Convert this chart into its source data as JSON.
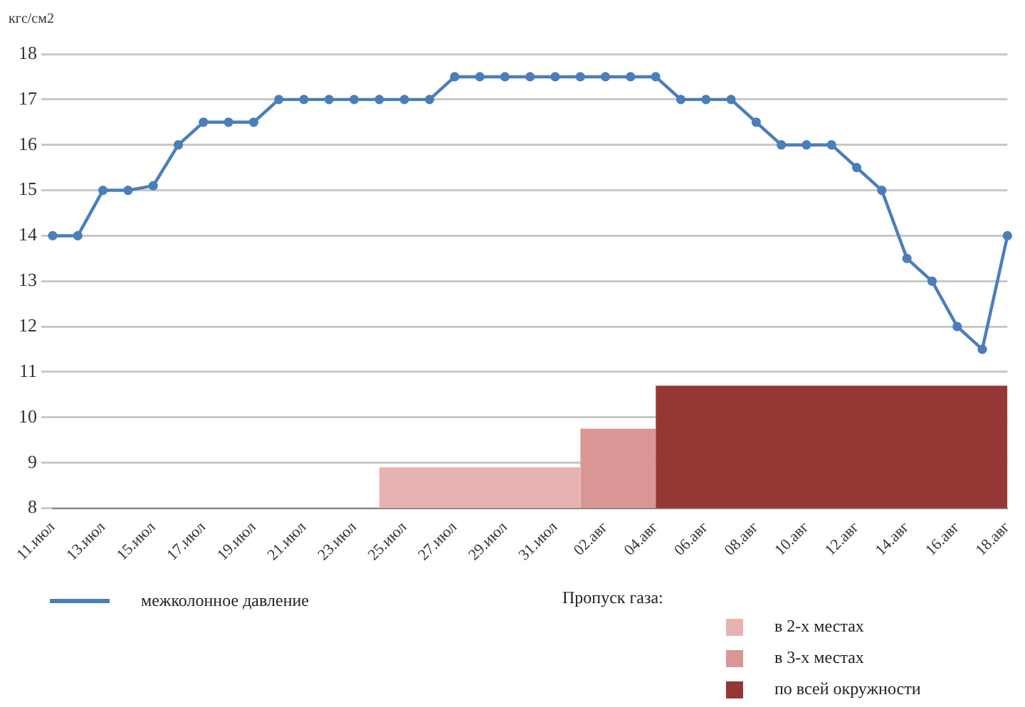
{
  "chart_data": {
    "type": "line",
    "ylabel": "кгс/см2",
    "legend_title": "Пропуск газа:",
    "categories": [
      "11.июл",
      null,
      "13.июл",
      null,
      "15.июл",
      null,
      "17.июл",
      null,
      "19.июл",
      null,
      "21.июл",
      null,
      "23.июл",
      null,
      "25.июл",
      null,
      "27.июл",
      null,
      "29.июл",
      null,
      "31.июл",
      null,
      "02.авг",
      null,
      "04.авг",
      null,
      "06.авг",
      null,
      "08.авг",
      null,
      "10.авг",
      null,
      "12.авг",
      null,
      "14.авг",
      null,
      "16.авг",
      null,
      "18.авг"
    ],
    "series": [
      {
        "type": "area",
        "name": "в 2-х местах",
        "color": "#e6b3b2",
        "values": [
          null,
          null,
          null,
          null,
          null,
          null,
          null,
          null,
          null,
          null,
          null,
          null,
          null,
          8.9,
          8.9,
          8.9,
          8.9,
          8.9,
          8.9,
          8.9,
          8.9,
          8.9,
          null,
          null,
          null,
          null,
          null,
          null,
          null,
          null,
          null,
          null,
          null,
          null,
          null,
          null,
          null,
          null,
          null
        ]
      },
      {
        "type": "area",
        "name": "в 3-х местах",
        "color": "#d99694",
        "values": [
          null,
          null,
          null,
          null,
          null,
          null,
          null,
          null,
          null,
          null,
          null,
          null,
          null,
          null,
          null,
          null,
          null,
          null,
          null,
          null,
          null,
          9.75,
          9.75,
          9.75,
          9.75,
          null,
          null,
          null,
          null,
          null,
          null,
          null,
          null,
          null,
          null,
          null,
          null,
          null,
          null
        ]
      },
      {
        "type": "area",
        "name": "по всей окружности",
        "color": "#953735",
        "values": [
          null,
          null,
          null,
          null,
          null,
          null,
          null,
          null,
          null,
          null,
          null,
          null,
          null,
          null,
          null,
          null,
          null,
          null,
          null,
          null,
          null,
          null,
          null,
          null,
          10.7,
          10.7,
          10.7,
          10.7,
          10.7,
          10.7,
          10.7,
          10.7,
          10.7,
          10.7,
          10.7,
          10.7,
          10.7,
          10.7,
          10.7
        ]
      },
      {
        "name": "межколонное давление",
        "marker": "circle",
        "color": "#4a7ebb",
        "values": [
          14,
          14,
          15,
          15,
          15.1,
          16,
          16.5,
          16.5,
          16.5,
          17,
          17,
          17,
          17,
          17,
          17,
          17,
          17.5,
          17.5,
          17.5,
          17.5,
          17.5,
          17.5,
          17.5,
          17.5,
          17.5,
          17,
          17,
          17,
          16.5,
          16,
          16,
          16,
          15.5,
          15,
          13.5,
          13,
          12,
          11.5,
          14
        ]
      }
    ],
    "ylim": [
      8,
      18
    ],
    "yticks": [
      8,
      9,
      10,
      11,
      12,
      13,
      14,
      15,
      16,
      17,
      18
    ],
    "grid": "y",
    "legend": "bottom",
    "line_style": "solid"
  }
}
